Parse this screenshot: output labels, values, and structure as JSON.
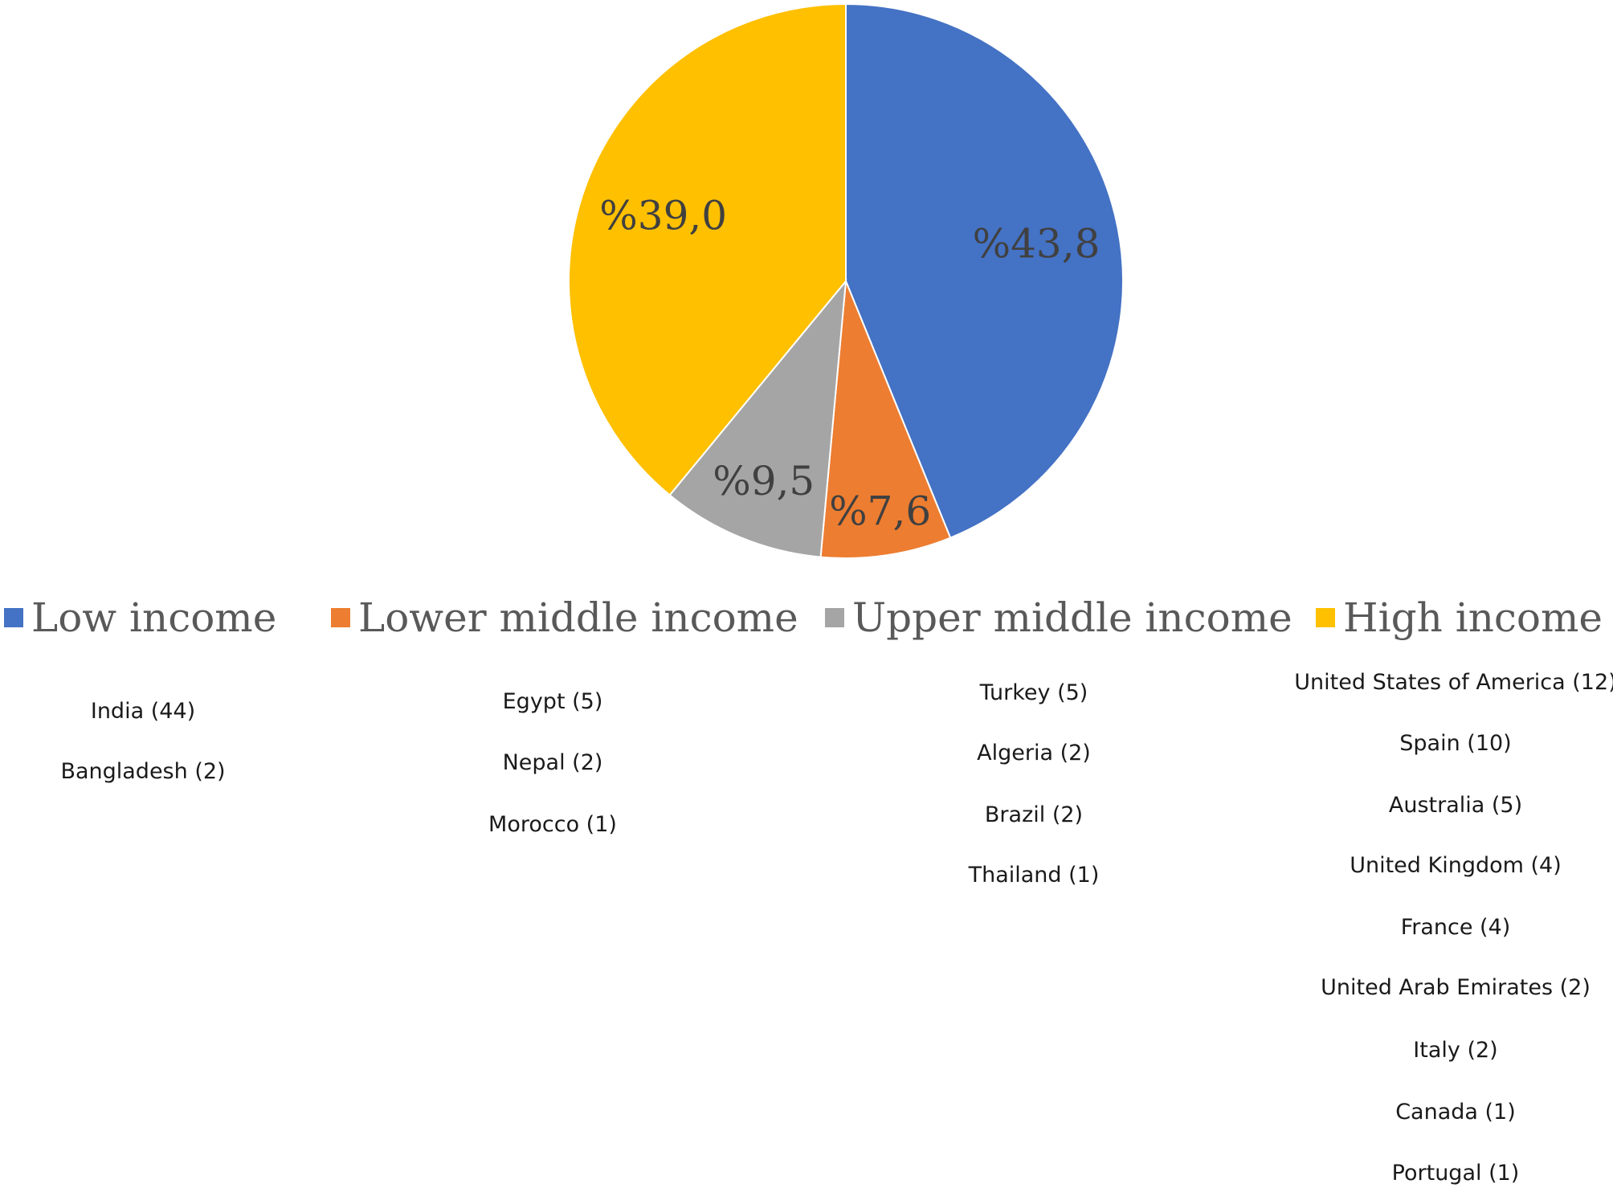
{
  "chart_data": {
    "type": "pie",
    "slices": [
      {
        "name": "Low income",
        "value": 43.8,
        "label": "%43,8",
        "color": "#4472C4"
      },
      {
        "name": "Lower middle income",
        "value": 7.6,
        "label": "%7,6",
        "color": "#ED7D31"
      },
      {
        "name": "Upper middle income",
        "value": 9.5,
        "label": "%9,5",
        "color": "#A5A5A5"
      },
      {
        "name": "High income",
        "value": 39.0,
        "label": "%39,0",
        "color": "#FFC000"
      }
    ],
    "legend_position": "bottom"
  },
  "countries": [
    {
      "group": "Low income",
      "items": [
        "India (44)",
        "Bangladesh (2)"
      ]
    },
    {
      "group": "Lower middle income",
      "items": [
        "Egypt (5)",
        "Nepal (2)",
        "Morocco (1)"
      ]
    },
    {
      "group": "Upper middle income",
      "items": [
        "Turkey (5)",
        "Algeria (2)",
        "Brazil (2)",
        "Thailand (1)"
      ]
    },
    {
      "group": "High income",
      "items": [
        "United States of America (12)",
        "Spain (10)",
        "Australia (5)",
        "United Kingdom (4)",
        "France (4)",
        "United Arab Emirates (2)",
        "Italy (2)",
        "Canada (1)",
        "Portugal (1)"
      ]
    }
  ]
}
